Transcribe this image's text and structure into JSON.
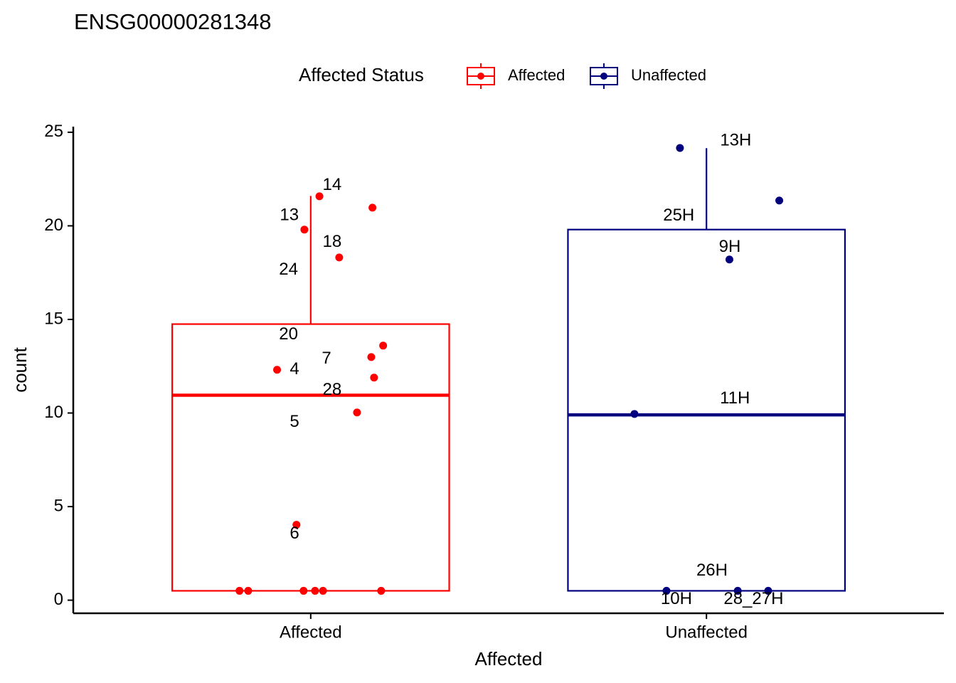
{
  "chart_data": {
    "type": "box",
    "title": "ENSG00000281348",
    "x_label": "Affected",
    "y_label": "count",
    "legend_title": "Affected Status",
    "legend_position": "top",
    "categories": [
      "Affected",
      "Unaffected"
    ],
    "xlim": [
      0.4,
      2.6
    ],
    "ylim": [
      -0.7,
      25.3
    ],
    "yticks": [
      0,
      5,
      10,
      15,
      20,
      25
    ],
    "grid": false,
    "series": [
      {
        "name": "Affected",
        "color": "#ff0000",
        "box": {
          "whisker_low": 0.5,
          "q1": 0.5,
          "median": 10.95,
          "q3": 14.75,
          "whisker_high": 21.6
        },
        "points": {
          "x": [
            1.022,
            1.156,
            0.984,
            1.072,
            1.183,
            1.153,
            0.915,
            1.16,
            1.117,
            0.964,
            0.82,
            0.842,
            0.982,
            1.011,
            1.031,
            1.178
          ],
          "y": [
            21.58,
            20.97,
            19.8,
            18.31,
            13.6,
            12.99,
            12.31,
            11.89,
            10.03,
            4.03,
            0.5,
            0.5,
            0.5,
            0.5,
            0.5,
            0.5
          ]
        },
        "labels": {
          "text": [
            "14",
            "13",
            "18",
            "24",
            "20",
            "7",
            "4",
            "28",
            "5",
            "6"
          ],
          "x": [
            1.054,
            0.946,
            1.054,
            0.944,
            0.944,
            1.04,
            0.959,
            1.054,
            0.959,
            0.959
          ],
          "y": [
            22.15,
            20.55,
            19.11,
            17.63,
            14.17,
            12.88,
            12.31,
            11.21,
            9.5,
            3.53
          ]
        }
      },
      {
        "name": "Unaffected",
        "color": "#00007f",
        "box": {
          "whisker_low": 0.5,
          "q1": 0.5,
          "median": 9.9,
          "q3": 19.8,
          "whisker_high": 24.15
        },
        "points": {
          "x": [
            1.933,
            2.184,
            2.058,
            1.818,
            1.899,
            2.079,
            2.156
          ],
          "y": [
            24.16,
            21.35,
            18.2,
            9.95,
            0.5,
            0.5,
            0.5
          ]
        },
        "labels": {
          "text": [
            "13H",
            "25H",
            "9H",
            "11H",
            "26H",
            "10H",
            "28_27H"
          ],
          "x": [
            2.074,
            1.93,
            2.059,
            2.072,
            2.014,
            1.924,
            2.119
          ],
          "y": [
            24.54,
            20.52,
            18.85,
            10.75,
            1.56,
            0.04,
            0.04
          ]
        }
      }
    ]
  }
}
